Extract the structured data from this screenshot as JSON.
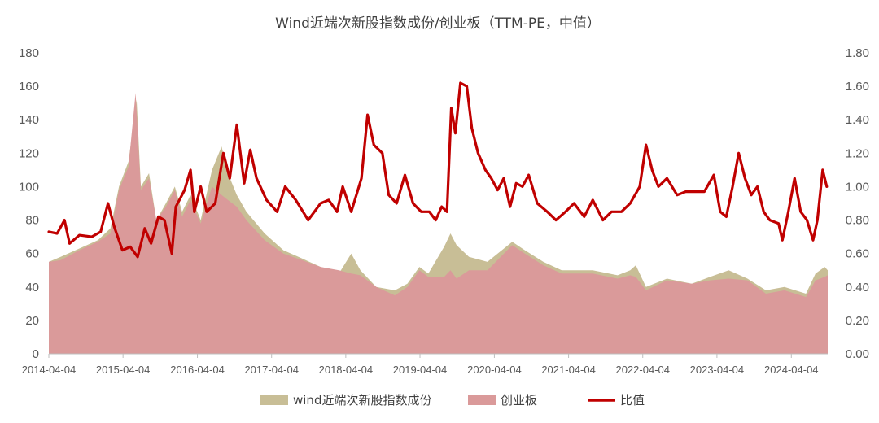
{
  "chart_data": {
    "type": "area",
    "title": "Wind近端次新股指数成份/创业板（TTM-PE，中值）",
    "x_tick_labels": [
      "2014-04-04",
      "2015-04-04",
      "2016-04-04",
      "2017-04-04",
      "2018-04-04",
      "2019-04-04",
      "2020-04-04",
      "2021-04-04",
      "2022-04-04",
      "2023-04-04",
      "2024-04-04"
    ],
    "x_range": [
      "2014-04-04",
      "2024-09-30"
    ],
    "left_axis": {
      "ticks": [
        "0",
        "20",
        "40",
        "60",
        "80",
        "100",
        "120",
        "140",
        "160",
        "180"
      ],
      "ylim": [
        0,
        180
      ]
    },
    "right_axis": {
      "ticks": [
        "0.00",
        "0.20",
        "0.40",
        "0.60",
        "0.80",
        "1.00",
        "1.20",
        "1.40",
        "1.60",
        "1.80"
      ],
      "ylim": [
        0,
        1.8
      ]
    },
    "legend_position": "bottom",
    "series": [
      {
        "name": "wind近端次新股指数成份",
        "kind": "area",
        "axis": "left",
        "color": "#C8BE96",
        "points": [
          [
            "2014-04-04",
            55
          ],
          [
            "2014-06-01",
            58
          ],
          [
            "2014-09-01",
            63
          ],
          [
            "2014-12-01",
            68
          ],
          [
            "2015-02-01",
            75
          ],
          [
            "2015-03-15",
            100
          ],
          [
            "2015-05-01",
            115
          ],
          [
            "2015-06-10",
            152
          ],
          [
            "2015-07-01",
            100
          ],
          [
            "2015-08-10",
            108
          ],
          [
            "2015-09-15",
            80
          ],
          [
            "2015-11-01",
            90
          ],
          [
            "2015-12-15",
            100
          ],
          [
            "2016-01-20",
            85
          ],
          [
            "2016-03-01",
            95
          ],
          [
            "2016-04-20",
            80
          ],
          [
            "2016-06-15",
            110
          ],
          [
            "2016-08-01",
            124
          ],
          [
            "2016-09-01",
            108
          ],
          [
            "2016-10-15",
            95
          ],
          [
            "2016-12-01",
            85
          ],
          [
            "2017-03-01",
            72
          ],
          [
            "2017-06-01",
            62
          ],
          [
            "2017-09-01",
            57
          ],
          [
            "2017-12-01",
            52
          ],
          [
            "2018-03-01",
            48
          ],
          [
            "2018-05-01",
            60
          ],
          [
            "2018-06-15",
            50
          ],
          [
            "2018-09-01",
            40
          ],
          [
            "2018-12-01",
            38
          ],
          [
            "2019-02-01",
            42
          ],
          [
            "2019-04-01",
            52
          ],
          [
            "2019-05-15",
            48
          ],
          [
            "2019-08-01",
            64
          ],
          [
            "2019-09-01",
            72
          ],
          [
            "2019-10-01",
            65
          ],
          [
            "2019-12-01",
            58
          ],
          [
            "2020-03-01",
            55
          ],
          [
            "2020-07-01",
            67
          ],
          [
            "2020-09-01",
            62
          ],
          [
            "2020-12-01",
            55
          ],
          [
            "2021-03-01",
            50
          ],
          [
            "2021-08-01",
            50
          ],
          [
            "2021-12-01",
            47
          ],
          [
            "2022-02-01",
            50
          ],
          [
            "2022-03-01",
            53
          ],
          [
            "2022-04-20",
            40
          ],
          [
            "2022-08-01",
            45
          ],
          [
            "2022-12-01",
            42
          ],
          [
            "2023-03-01",
            46
          ],
          [
            "2023-06-01",
            50
          ],
          [
            "2023-09-01",
            45
          ],
          [
            "2023-12-01",
            38
          ],
          [
            "2024-03-01",
            40
          ],
          [
            "2024-06-15",
            36
          ],
          [
            "2024-08-01",
            48
          ],
          [
            "2024-09-15",
            52
          ],
          [
            "2024-09-30",
            50
          ]
        ]
      },
      {
        "name": "创业板",
        "kind": "area",
        "axis": "left",
        "color": "#DA9A9A",
        "points": [
          [
            "2014-04-04",
            55
          ],
          [
            "2014-06-01",
            56
          ],
          [
            "2014-09-01",
            62
          ],
          [
            "2014-12-01",
            67
          ],
          [
            "2015-02-01",
            72
          ],
          [
            "2015-03-15",
            98
          ],
          [
            "2015-05-01",
            112
          ],
          [
            "2015-06-05",
            156
          ],
          [
            "2015-07-01",
            98
          ],
          [
            "2015-08-10",
            105
          ],
          [
            "2015-09-15",
            80
          ],
          [
            "2015-11-01",
            88
          ],
          [
            "2015-12-15",
            98
          ],
          [
            "2016-01-20",
            82
          ],
          [
            "2016-03-01",
            92
          ],
          [
            "2016-04-20",
            78
          ],
          [
            "2016-06-15",
            100
          ],
          [
            "2016-08-01",
            95
          ],
          [
            "2016-09-01",
            92
          ],
          [
            "2016-10-15",
            88
          ],
          [
            "2016-12-01",
            80
          ],
          [
            "2017-03-01",
            68
          ],
          [
            "2017-06-01",
            60
          ],
          [
            "2017-09-01",
            56
          ],
          [
            "2017-12-01",
            52
          ],
          [
            "2018-03-01",
            50
          ],
          [
            "2018-05-01",
            48
          ],
          [
            "2018-06-15",
            47
          ],
          [
            "2018-09-01",
            40
          ],
          [
            "2018-12-01",
            35
          ],
          [
            "2019-02-01",
            40
          ],
          [
            "2019-04-01",
            50
          ],
          [
            "2019-05-15",
            46
          ],
          [
            "2019-08-01",
            46
          ],
          [
            "2019-09-01",
            50
          ],
          [
            "2019-10-01",
            45
          ],
          [
            "2019-12-01",
            50
          ],
          [
            "2020-03-01",
            50
          ],
          [
            "2020-07-01",
            65
          ],
          [
            "2020-09-01",
            60
          ],
          [
            "2020-12-01",
            53
          ],
          [
            "2021-03-01",
            48
          ],
          [
            "2021-08-01",
            48
          ],
          [
            "2021-12-01",
            45
          ],
          [
            "2022-02-01",
            47
          ],
          [
            "2022-03-01",
            46
          ],
          [
            "2022-04-20",
            38
          ],
          [
            "2022-08-01",
            44
          ],
          [
            "2022-12-01",
            42
          ],
          [
            "2023-03-01",
            44
          ],
          [
            "2023-06-01",
            45
          ],
          [
            "2023-09-01",
            44
          ],
          [
            "2023-12-01",
            36
          ],
          [
            "2024-03-01",
            38
          ],
          [
            "2024-06-15",
            34
          ],
          [
            "2024-08-01",
            44
          ],
          [
            "2024-09-15",
            46
          ],
          [
            "2024-09-30",
            47
          ]
        ]
      },
      {
        "name": "比值",
        "kind": "line",
        "axis": "right",
        "color": "#C00000",
        "points": [
          [
            "2014-04-04",
            0.73
          ],
          [
            "2014-05-15",
            0.72
          ],
          [
            "2014-06-20",
            0.8
          ],
          [
            "2014-07-15",
            0.66
          ],
          [
            "2014-09-01",
            0.71
          ],
          [
            "2014-11-01",
            0.7
          ],
          [
            "2014-12-15",
            0.73
          ],
          [
            "2015-01-20",
            0.9
          ],
          [
            "2015-02-20",
            0.76
          ],
          [
            "2015-04-01",
            0.62
          ],
          [
            "2015-05-10",
            0.64
          ],
          [
            "2015-06-15",
            0.58
          ],
          [
            "2015-07-20",
            0.75
          ],
          [
            "2015-08-20",
            0.66
          ],
          [
            "2015-09-25",
            0.82
          ],
          [
            "2015-10-25",
            0.8
          ],
          [
            "2015-11-30",
            0.6
          ],
          [
            "2015-12-20",
            0.88
          ],
          [
            "2016-02-01",
            0.98
          ],
          [
            "2016-03-01",
            1.1
          ],
          [
            "2016-03-20",
            0.85
          ],
          [
            "2016-04-20",
            1.0
          ],
          [
            "2016-05-20",
            0.85
          ],
          [
            "2016-07-01",
            0.9
          ],
          [
            "2016-08-10",
            1.2
          ],
          [
            "2016-09-10",
            1.05
          ],
          [
            "2016-10-15",
            1.37
          ],
          [
            "2016-11-20",
            1.02
          ],
          [
            "2016-12-20",
            1.22
          ],
          [
            "2017-01-20",
            1.05
          ],
          [
            "2017-03-10",
            0.92
          ],
          [
            "2017-05-01",
            0.85
          ],
          [
            "2017-06-10",
            1.0
          ],
          [
            "2017-08-01",
            0.92
          ],
          [
            "2017-10-01",
            0.8
          ],
          [
            "2017-12-01",
            0.9
          ],
          [
            "2018-01-10",
            0.92
          ],
          [
            "2018-02-20",
            0.85
          ],
          [
            "2018-03-20",
            1.0
          ],
          [
            "2018-05-01",
            0.85
          ],
          [
            "2018-06-20",
            1.05
          ],
          [
            "2018-07-20",
            1.43
          ],
          [
            "2018-08-20",
            1.25
          ],
          [
            "2018-10-01",
            1.2
          ],
          [
            "2018-11-01",
            0.95
          ],
          [
            "2018-12-10",
            0.9
          ],
          [
            "2019-01-20",
            1.07
          ],
          [
            "2019-03-01",
            0.9
          ],
          [
            "2019-04-10",
            0.85
          ],
          [
            "2019-05-20",
            0.85
          ],
          [
            "2019-06-20",
            0.8
          ],
          [
            "2019-07-20",
            0.88
          ],
          [
            "2019-08-15",
            0.85
          ],
          [
            "2019-09-05",
            1.47
          ],
          [
            "2019-09-25",
            1.32
          ],
          [
            "2019-10-20",
            1.62
          ],
          [
            "2019-11-20",
            1.6
          ],
          [
            "2019-12-15",
            1.35
          ],
          [
            "2020-01-15",
            1.2
          ],
          [
            "2020-02-20",
            1.1
          ],
          [
            "2020-03-20",
            1.05
          ],
          [
            "2020-04-20",
            0.98
          ],
          [
            "2020-05-20",
            1.05
          ],
          [
            "2020-06-20",
            0.88
          ],
          [
            "2020-07-20",
            1.02
          ],
          [
            "2020-08-20",
            1.0
          ],
          [
            "2020-09-20",
            1.07
          ],
          [
            "2020-11-01",
            0.9
          ],
          [
            "2020-12-20",
            0.85
          ],
          [
            "2021-02-01",
            0.8
          ],
          [
            "2021-03-20",
            0.85
          ],
          [
            "2021-05-01",
            0.9
          ],
          [
            "2021-06-20",
            0.82
          ],
          [
            "2021-08-01",
            0.92
          ],
          [
            "2021-09-20",
            0.8
          ],
          [
            "2021-11-01",
            0.85
          ],
          [
            "2021-12-20",
            0.85
          ],
          [
            "2022-02-01",
            0.9
          ],
          [
            "2022-03-20",
            1.0
          ],
          [
            "2022-04-20",
            1.25
          ],
          [
            "2022-05-20",
            1.1
          ],
          [
            "2022-06-20",
            1.0
          ],
          [
            "2022-08-01",
            1.05
          ],
          [
            "2022-09-20",
            0.95
          ],
          [
            "2022-11-01",
            0.97
          ],
          [
            "2022-12-20",
            0.97
          ],
          [
            "2023-02-01",
            0.97
          ],
          [
            "2023-03-20",
            1.07
          ],
          [
            "2023-04-20",
            0.85
          ],
          [
            "2023-05-20",
            0.82
          ],
          [
            "2023-06-20",
            1.0
          ],
          [
            "2023-07-20",
            1.2
          ],
          [
            "2023-08-20",
            1.05
          ],
          [
            "2023-09-20",
            0.95
          ],
          [
            "2023-10-20",
            1.0
          ],
          [
            "2023-11-20",
            0.85
          ],
          [
            "2023-12-20",
            0.8
          ],
          [
            "2024-02-01",
            0.78
          ],
          [
            "2024-02-20",
            0.68
          ],
          [
            "2024-03-20",
            0.85
          ],
          [
            "2024-04-20",
            1.05
          ],
          [
            "2024-05-20",
            0.85
          ],
          [
            "2024-06-20",
            0.8
          ],
          [
            "2024-07-20",
            0.68
          ],
          [
            "2024-08-10",
            0.8
          ],
          [
            "2024-09-05",
            1.1
          ],
          [
            "2024-09-25",
            1.0
          ]
        ]
      }
    ]
  }
}
